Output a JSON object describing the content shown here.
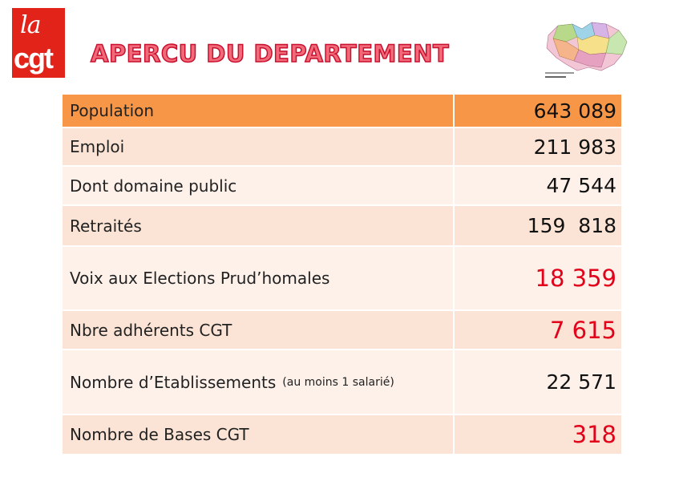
{
  "header": {
    "logo_top": "la",
    "logo_bottom": "cgt",
    "title": "APERCU DU DEPARTEMENT"
  },
  "table": {
    "rows": [
      {
        "label": "Population",
        "value": "643 089"
      },
      {
        "label": "Emploi",
        "value": "211 983"
      },
      {
        "label": "Dont domaine public",
        "value": "47 544"
      },
      {
        "label": "Retraités",
        "value": "159  818"
      },
      {
        "label": "Voix aux Elections Prud’homales",
        "value": "18 359",
        "highlight": true
      },
      {
        "label": "Nbre adhérents CGT",
        "value": "7 615",
        "highlight": true
      },
      {
        "label": "Nombre d’Etablissements",
        "note": "(au moins 1 salarié)",
        "value": "22 571"
      },
      {
        "label": "Nombre de Bases CGT",
        "value": "318",
        "highlight": true
      }
    ]
  }
}
